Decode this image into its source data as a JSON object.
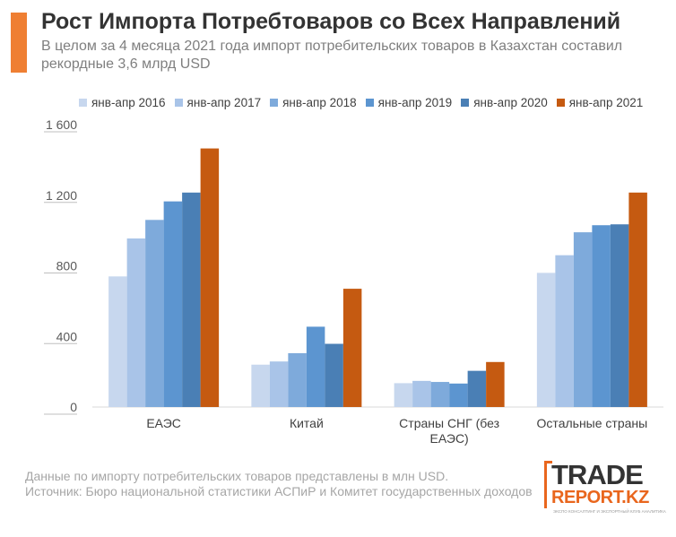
{
  "header": {
    "title": "Рост Импорта Потребтоваров со Всех Направлений",
    "subtitle": "В целом за 4 месяца 2021 года импорт потребительских товаров в Казахстан составил рекордные 3,6 млрд USD"
  },
  "chart_data": {
    "type": "bar",
    "categories": [
      "ЕАЭС",
      "Китай",
      "Страны СНГ (без ЕАЭС)",
      "Остальные страны"
    ],
    "series": [
      {
        "name": "янв-апр 2016",
        "color": "#c7d7ee",
        "values": [
          740,
          240,
          135,
          760
        ]
      },
      {
        "name": "янв-апр 2017",
        "color": "#a9c4e8",
        "values": [
          955,
          258,
          148,
          860
        ]
      },
      {
        "name": "янв-апр 2018",
        "color": "#7eaadb",
        "values": [
          1060,
          305,
          142,
          990
        ]
      },
      {
        "name": "янв-апр 2019",
        "color": "#5c95d0",
        "values": [
          1165,
          455,
          133,
          1030
        ]
      },
      {
        "name": "янв-апр 2020",
        "color": "#4a7fb5",
        "values": [
          1215,
          358,
          205,
          1035
        ]
      },
      {
        "name": "янв-апр 2021",
        "color": "#c55a11",
        "values": [
          1465,
          670,
          255,
          1215
        ]
      }
    ],
    "yticks": [
      "0",
      "400",
      "800",
      "1 200",
      "1 600"
    ],
    "ylim": [
      0,
      1600
    ],
    "legend_position": "top",
    "grid": false
  },
  "footer": {
    "note": "Данные по импорту потребительских товаров представлены в млн USD.",
    "source": "Источник: Бюро национальной статистики АСПиР и Комитет государственных доходов"
  },
  "logo": {
    "word1": "TRADE",
    "word2": "REPORT.KZ",
    "tagline": "ЭКСПО КОНСАЛТИНГ И ЭКСПОРТНЫЙ КЛУБ АНАЛИТИКА"
  }
}
